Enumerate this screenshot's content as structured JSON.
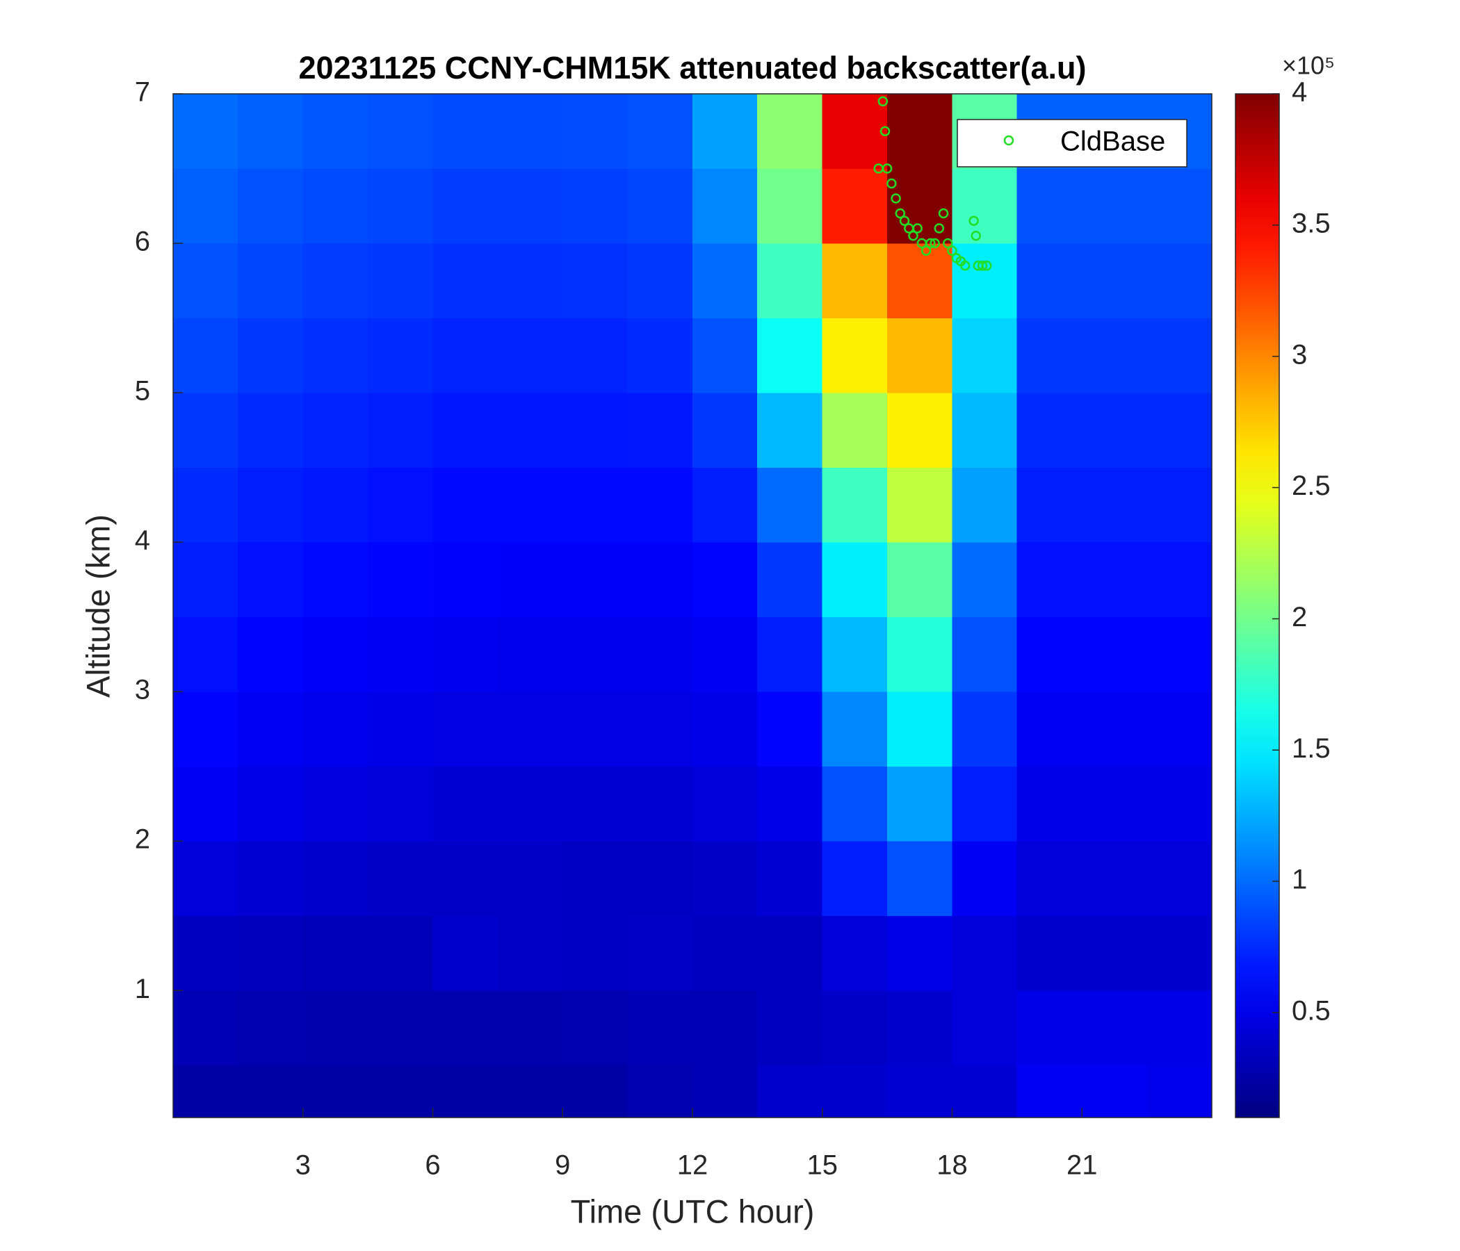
{
  "chart_data": {
    "type": "heatmap",
    "title": "20231125 CCNY-CHM15K attenuated backscatter(a.u)",
    "xlabel": "Time (UTC hour)",
    "ylabel": "Altitude (km)",
    "xbins": [
      0,
      1.5,
      3,
      4.5,
      6,
      7.5,
      9,
      10.5,
      12,
      13.5,
      15,
      16.5,
      18,
      19.5,
      21,
      22.5,
      24
    ],
    "ybins": [
      0.15,
      0.5,
      1,
      1.5,
      2,
      2.5,
      3,
      3.5,
      4,
      4.5,
      5,
      5.5,
      6,
      6.5,
      7
    ],
    "values": [
      [
        0.25,
        0.25,
        0.25,
        0.25,
        0.25,
        0.25,
        0.25,
        0.28,
        0.3,
        0.4,
        0.4,
        0.42,
        0.42,
        0.55,
        0.55,
        0.52
      ],
      [
        0.3,
        0.28,
        0.27,
        0.27,
        0.27,
        0.27,
        0.28,
        0.3,
        0.3,
        0.35,
        0.38,
        0.4,
        0.45,
        0.5,
        0.5,
        0.5
      ],
      [
        0.35,
        0.33,
        0.32,
        0.32,
        0.4,
        0.38,
        0.36,
        0.38,
        0.35,
        0.35,
        0.45,
        0.5,
        0.45,
        0.4,
        0.4,
        0.4
      ],
      [
        0.45,
        0.42,
        0.4,
        0.38,
        0.37,
        0.37,
        0.36,
        0.36,
        0.38,
        0.42,
        0.7,
        0.9,
        0.55,
        0.45,
        0.45,
        0.45
      ],
      [
        0.55,
        0.5,
        0.46,
        0.44,
        0.42,
        0.42,
        0.42,
        0.42,
        0.45,
        0.5,
        0.9,
        1.2,
        0.7,
        0.5,
        0.5,
        0.5
      ],
      [
        0.6,
        0.55,
        0.52,
        0.5,
        0.48,
        0.48,
        0.48,
        0.48,
        0.5,
        0.6,
        1.1,
        1.5,
        0.8,
        0.55,
        0.55,
        0.55
      ],
      [
        0.65,
        0.6,
        0.57,
        0.55,
        0.53,
        0.52,
        0.52,
        0.52,
        0.55,
        0.7,
        1.3,
        1.7,
        0.9,
        0.6,
        0.6,
        0.6
      ],
      [
        0.7,
        0.65,
        0.62,
        0.6,
        0.58,
        0.57,
        0.57,
        0.57,
        0.6,
        0.8,
        1.5,
        1.9,
        1.0,
        0.65,
        0.65,
        0.65
      ],
      [
        0.75,
        0.7,
        0.68,
        0.65,
        0.62,
        0.62,
        0.62,
        0.62,
        0.7,
        1.0,
        1.8,
        2.3,
        1.2,
        0.7,
        0.7,
        0.7
      ],
      [
        0.8,
        0.75,
        0.72,
        0.7,
        0.67,
        0.67,
        0.67,
        0.68,
        0.8,
        1.3,
        2.2,
        2.6,
        1.3,
        0.75,
        0.75,
        0.75
      ],
      [
        0.85,
        0.8,
        0.77,
        0.75,
        0.72,
        0.72,
        0.72,
        0.75,
        0.9,
        1.6,
        2.6,
        2.8,
        1.4,
        0.8,
        0.8,
        0.8
      ],
      [
        0.9,
        0.85,
        0.82,
        0.8,
        0.77,
        0.77,
        0.78,
        0.8,
        1.0,
        1.8,
        2.8,
        3.2,
        1.5,
        0.85,
        0.85,
        0.85
      ],
      [
        0.95,
        0.9,
        0.87,
        0.85,
        0.82,
        0.82,
        0.83,
        0.85,
        1.1,
        2.0,
        3.4,
        4.0,
        1.8,
        0.9,
        0.9,
        0.9
      ],
      [
        1.0,
        0.95,
        0.92,
        0.9,
        0.87,
        0.87,
        0.88,
        0.9,
        1.2,
        2.1,
        3.6,
        4.0,
        1.9,
        0.95,
        0.95,
        0.95
      ]
    ],
    "colormap": "jet",
    "clim": [
      0.1,
      4
    ],
    "cticks": [
      0.5,
      1,
      1.5,
      2,
      2.5,
      3,
      3.5,
      4
    ],
    "colorbar_exponent": "×10⁵",
    "xlim": [
      0,
      24
    ],
    "ylim": [
      0.15,
      7
    ],
    "xticks": [
      3,
      6,
      9,
      12,
      15,
      18,
      21
    ],
    "yticks": [
      1,
      2,
      3,
      4,
      5,
      6,
      7
    ],
    "overlay": {
      "type": "scatter",
      "name": "CldBase",
      "color": "#22dd22",
      "x": [
        16.4,
        16.45,
        16.3,
        16.5,
        16.6,
        16.7,
        16.8,
        16.9,
        17.0,
        17.1,
        17.2,
        17.3,
        17.4,
        17.5,
        17.6,
        17.7,
        17.8,
        17.9,
        18.0,
        18.1,
        18.2,
        18.3,
        18.5,
        18.55,
        18.6,
        18.7,
        18.8
      ],
      "y": [
        6.95,
        6.75,
        6.5,
        6.5,
        6.4,
        6.3,
        6.2,
        6.15,
        6.1,
        6.05,
        6.1,
        6.0,
        5.95,
        6.0,
        6.0,
        6.1,
        6.2,
        6.0,
        5.95,
        5.9,
        5.88,
        5.85,
        6.15,
        6.05,
        5.85,
        5.85,
        5.85
      ]
    },
    "legend": "upper right"
  }
}
